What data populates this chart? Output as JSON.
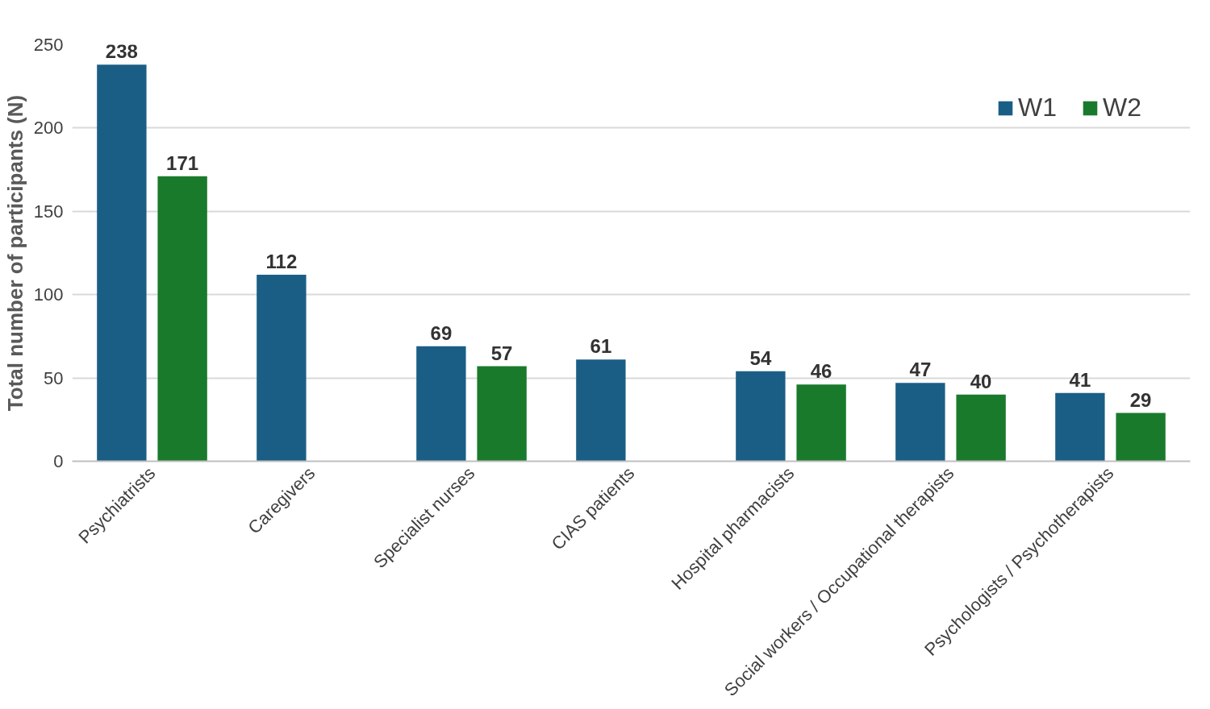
{
  "chart_data": {
    "type": "bar",
    "ylabel": "Total number of participants (N)",
    "categories": [
      "Psychiatrists",
      "Caregivers",
      "Specialist nurses",
      "CIAS patients",
      "Hospital pharmacists",
      "Social workers / Occupational therapists",
      "Psychologists / Psychotherapists"
    ],
    "series": [
      {
        "name": "W1",
        "color": "#1b5e85",
        "values": [
          238,
          112,
          69,
          61,
          54,
          47,
          41
        ]
      },
      {
        "name": "W2",
        "color": "#1a7a2c",
        "values": [
          171,
          null,
          57,
          null,
          46,
          40,
          29
        ]
      }
    ],
    "ylim": [
      0,
      250
    ],
    "yticks": [
      0,
      50,
      100,
      150,
      200,
      250
    ],
    "grid": "y",
    "legend": "top right",
    "data_labels": true
  }
}
